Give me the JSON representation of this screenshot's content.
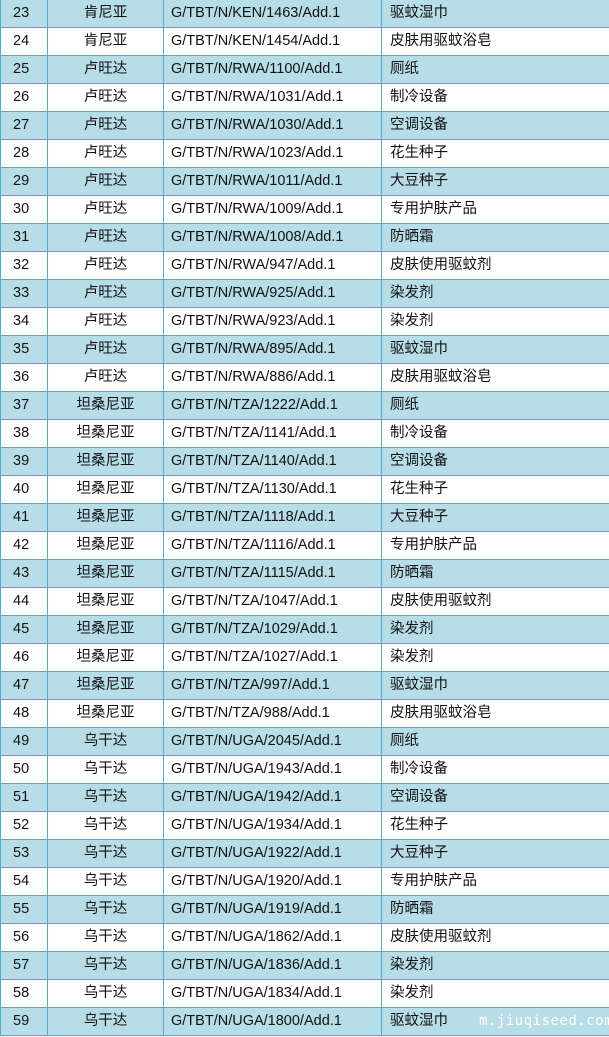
{
  "rows": [
    {
      "no": "23",
      "country": "肯尼亚",
      "code": "G/TBT/N/KEN/1463/Add.1",
      "product": "驱蚊湿巾"
    },
    {
      "no": "24",
      "country": "肯尼亚",
      "code": "G/TBT/N/KEN/1454/Add.1",
      "product": "皮肤用驱蚊浴皂"
    },
    {
      "no": "25",
      "country": "卢旺达",
      "code": "G/TBT/N/RWA/1100/Add.1",
      "product": "厕纸"
    },
    {
      "no": "26",
      "country": "卢旺达",
      "code": "G/TBT/N/RWA/1031/Add.1",
      "product": "制冷设备"
    },
    {
      "no": "27",
      "country": "卢旺达",
      "code": "G/TBT/N/RWA/1030/Add.1",
      "product": "空调设备"
    },
    {
      "no": "28",
      "country": "卢旺达",
      "code": "G/TBT/N/RWA/1023/Add.1",
      "product": "花生种子"
    },
    {
      "no": "29",
      "country": "卢旺达",
      "code": "G/TBT/N/RWA/1011/Add.1",
      "product": "大豆种子"
    },
    {
      "no": "30",
      "country": "卢旺达",
      "code": "G/TBT/N/RWA/1009/Add.1",
      "product": "专用护肤产品"
    },
    {
      "no": "31",
      "country": "卢旺达",
      "code": "G/TBT/N/RWA/1008/Add.1",
      "product": "防晒霜"
    },
    {
      "no": "32",
      "country": "卢旺达",
      "code": "G/TBT/N/RWA/947/Add.1",
      "product": "皮肤使用驱蚊剂"
    },
    {
      "no": "33",
      "country": "卢旺达",
      "code": "G/TBT/N/RWA/925/Add.1",
      "product": "染发剂"
    },
    {
      "no": "34",
      "country": "卢旺达",
      "code": "G/TBT/N/RWA/923/Add.1",
      "product": "染发剂"
    },
    {
      "no": "35",
      "country": "卢旺达",
      "code": "G/TBT/N/RWA/895/Add.1",
      "product": "驱蚊湿巾"
    },
    {
      "no": "36",
      "country": "卢旺达",
      "code": "G/TBT/N/RWA/886/Add.1",
      "product": "皮肤用驱蚊浴皂"
    },
    {
      "no": "37",
      "country": "坦桑尼亚",
      "code": "G/TBT/N/TZA/1222/Add.1",
      "product": "厕纸"
    },
    {
      "no": "38",
      "country": "坦桑尼亚",
      "code": "G/TBT/N/TZA/1141/Add.1",
      "product": "制冷设备"
    },
    {
      "no": "39",
      "country": "坦桑尼亚",
      "code": "G/TBT/N/TZA/1140/Add.1",
      "product": "空调设备"
    },
    {
      "no": "40",
      "country": "坦桑尼亚",
      "code": "G/TBT/N/TZA/1130/Add.1",
      "product": "花生种子"
    },
    {
      "no": "41",
      "country": "坦桑尼亚",
      "code": "G/TBT/N/TZA/1118/Add.1",
      "product": "大豆种子"
    },
    {
      "no": "42",
      "country": "坦桑尼亚",
      "code": "G/TBT/N/TZA/1116/Add.1",
      "product": "专用护肤产品"
    },
    {
      "no": "43",
      "country": "坦桑尼亚",
      "code": "G/TBT/N/TZA/1115/Add.1",
      "product": "防晒霜"
    },
    {
      "no": "44",
      "country": "坦桑尼亚",
      "code": "G/TBT/N/TZA/1047/Add.1",
      "product": "皮肤使用驱蚊剂"
    },
    {
      "no": "45",
      "country": "坦桑尼亚",
      "code": "G/TBT/N/TZA/1029/Add.1",
      "product": "染发剂"
    },
    {
      "no": "46",
      "country": "坦桑尼亚",
      "code": "G/TBT/N/TZA/1027/Add.1",
      "product": "染发剂"
    },
    {
      "no": "47",
      "country": "坦桑尼亚",
      "code": "G/TBT/N/TZA/997/Add.1",
      "product": "驱蚊湿巾"
    },
    {
      "no": "48",
      "country": "坦桑尼亚",
      "code": "G/TBT/N/TZA/988/Add.1",
      "product": "皮肤用驱蚊浴皂"
    },
    {
      "no": "49",
      "country": "乌干达",
      "code": "G/TBT/N/UGA/2045/Add.1",
      "product": "厕纸"
    },
    {
      "no": "50",
      "country": "乌干达",
      "code": "G/TBT/N/UGA/1943/Add.1",
      "product": "制冷设备"
    },
    {
      "no": "51",
      "country": "乌干达",
      "code": "G/TBT/N/UGA/1942/Add.1",
      "product": "空调设备"
    },
    {
      "no": "52",
      "country": "乌干达",
      "code": "G/TBT/N/UGA/1934/Add.1",
      "product": "花生种子"
    },
    {
      "no": "53",
      "country": "乌干达",
      "code": "G/TBT/N/UGA/1922/Add.1",
      "product": "大豆种子"
    },
    {
      "no": "54",
      "country": "乌干达",
      "code": "G/TBT/N/UGA/1920/Add.1",
      "product": "专用护肤产品"
    },
    {
      "no": "55",
      "country": "乌干达",
      "code": "G/TBT/N/UGA/1919/Add.1",
      "product": "防晒霜"
    },
    {
      "no": "56",
      "country": "乌干达",
      "code": "G/TBT/N/UGA/1862/Add.1",
      "product": "皮肤使用驱蚊剂"
    },
    {
      "no": "57",
      "country": "乌干达",
      "code": "G/TBT/N/UGA/1836/Add.1",
      "product": "染发剂"
    },
    {
      "no": "58",
      "country": "乌干达",
      "code": "G/TBT/N/UGA/1834/Add.1",
      "product": "染发剂"
    },
    {
      "no": "59",
      "country": "乌干达",
      "code": "G/TBT/N/UGA/1800/Add.1",
      "product": "驱蚊湿巾"
    }
  ],
  "watermark": "m.jiuqiseed.com",
  "colors": {
    "odd_row": "#b7dde8",
    "even_row": "#ffffff",
    "border": "#4eadc8"
  }
}
